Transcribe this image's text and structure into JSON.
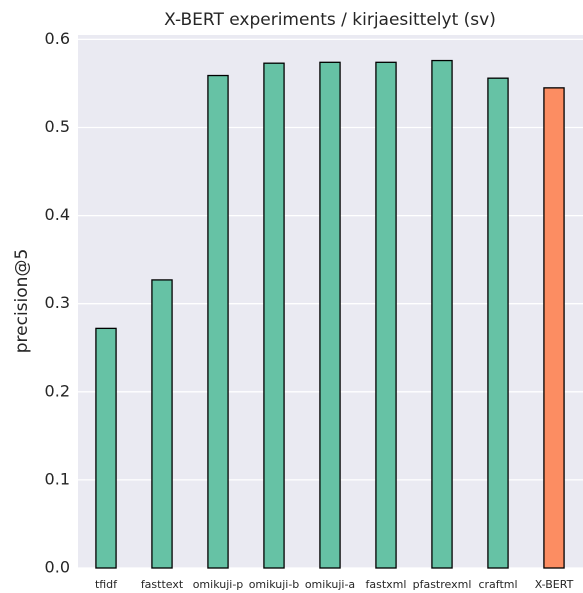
{
  "chart_data": {
    "type": "bar",
    "title": "X-BERT experiments / kirjaesittelyt (sv)",
    "y_label": "precision@5",
    "categories": [
      "tfidf",
      "fasttext",
      "omikuji-p",
      "omikuji-b",
      "omikuji-a",
      "fastxml",
      "pfastrexml",
      "craftml",
      "X-BERT"
    ],
    "values": [
      0.272,
      0.327,
      0.559,
      0.573,
      0.574,
      0.574,
      0.576,
      0.556,
      0.545
    ],
    "colors": [
      "#66c2a5",
      "#66c2a5",
      "#66c2a5",
      "#66c2a5",
      "#66c2a5",
      "#66c2a5",
      "#66c2a5",
      "#66c2a5",
      "#fc8d62"
    ],
    "ylim": [
      0,
      0.605
    ],
    "yticks": [
      {
        "value": 0,
        "label": "0.0"
      },
      0.1,
      0.2,
      0.3,
      0.4,
      0.5,
      0.6
    ],
    "grid": true
  }
}
